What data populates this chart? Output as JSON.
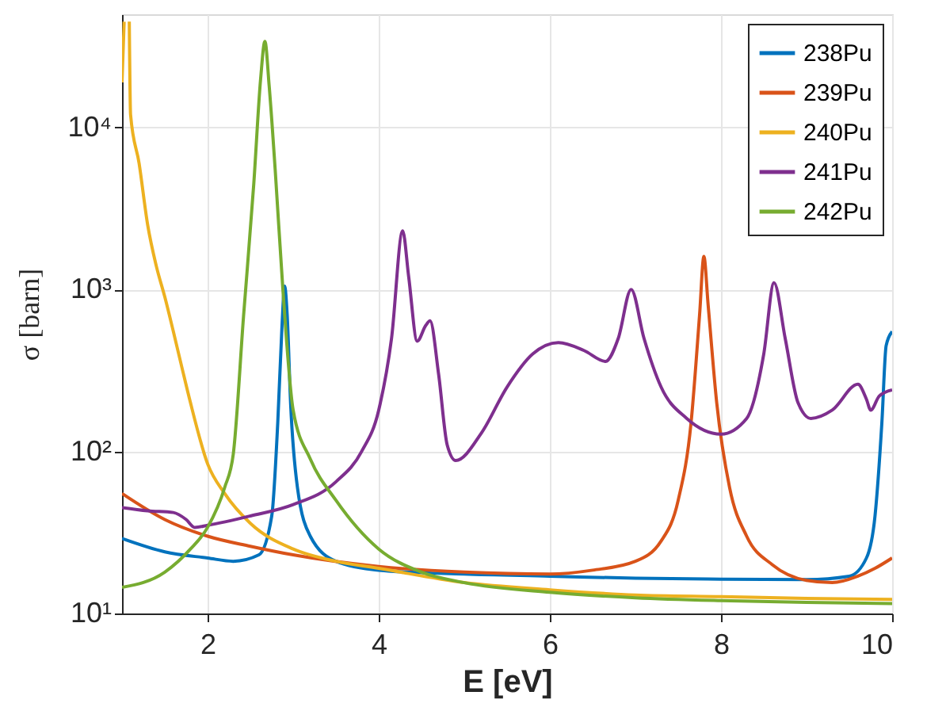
{
  "chart_data": {
    "type": "line",
    "xlabel": "E [eV]",
    "ylabel": "σ [barn]",
    "log": "y",
    "grid": true,
    "legend": "top right",
    "line_style": "solid",
    "marker": "none",
    "xlim": [
      1,
      10
    ],
    "xticks": [
      2,
      4,
      6,
      8,
      10
    ],
    "ylim": [
      10,
      50000
    ],
    "yticks": [
      {
        "value": 10,
        "label": "10¹"
      },
      {
        "value": 100,
        "label": "10²"
      },
      {
        "value": 1000,
        "label": "10³"
      },
      {
        "value": 10000,
        "label": "10⁴"
      }
    ],
    "series": [
      {
        "name": "238Pu",
        "color": "#0072bd",
        "x": [
          1,
          1.5,
          2,
          2.3,
          2.6,
          2.75,
          2.82,
          2.87,
          2.9,
          2.93,
          2.97,
          3.05,
          3.2,
          3.5,
          4,
          5,
          6,
          7,
          8,
          9,
          9.5,
          9.7,
          9.8,
          9.88,
          9.93,
          10
        ],
        "values": [
          29,
          24,
          22,
          21,
          23,
          40,
          150,
          600,
          1050,
          700,
          200,
          60,
          30,
          21,
          18.5,
          17.5,
          17,
          16.5,
          16.3,
          16.2,
          17,
          22,
          40,
          150,
          450,
          550
        ]
      },
      {
        "name": "239Pu",
        "color": "#d95319",
        "x": [
          1,
          1.5,
          2,
          2.5,
          3,
          4,
          5,
          6,
          6.5,
          7,
          7.3,
          7.5,
          7.65,
          7.75,
          7.8,
          7.85,
          7.95,
          8.1,
          8.3,
          8.6,
          9,
          9.3,
          9.6,
          9.8,
          10
        ],
        "values": [
          55,
          38,
          30,
          26,
          23,
          19.5,
          18,
          17.5,
          18.5,
          21,
          28,
          50,
          150,
          700,
          1600,
          800,
          200,
          60,
          30,
          20,
          16,
          15.5,
          17,
          19,
          22
        ]
      },
      {
        "name": "240Pu",
        "color": "#edb120",
        "x": [
          1,
          1.025,
          1.056,
          1.085,
          1.1,
          1.2,
          1.3,
          1.4,
          1.5,
          1.6,
          1.7,
          1.8,
          2,
          2.2,
          2.5,
          3,
          3.5,
          4,
          5,
          6,
          7,
          8,
          9,
          10
        ],
        "values": [
          19000,
          45000,
          null,
          45000,
          12000,
          6000,
          2500,
          1400,
          900,
          550,
          330,
          200,
          84,
          55,
          36,
          25,
          21,
          19,
          15.5,
          14,
          13,
          12.7,
          12.4,
          12.2
        ]
      },
      {
        "name": "241Pu",
        "color": "#7e2f8e",
        "x": [
          1,
          1.3,
          1.6,
          1.75,
          1.85,
          2,
          2.5,
          3,
          3.5,
          3.8,
          4,
          4.15,
          4.28,
          4.35,
          4.45,
          4.55,
          4.6,
          4.7,
          4.8,
          4.9,
          5.2,
          5.5,
          5.8,
          6.1,
          6.4,
          6.65,
          6.8,
          6.95,
          7.1,
          7.3,
          7.6,
          8,
          8.3,
          8.5,
          8.62,
          8.75,
          8.9,
          9.05,
          9.3,
          9.6,
          9.7,
          9.75,
          9.85,
          10
        ],
        "values": [
          45,
          43,
          42,
          38,
          34,
          35,
          40,
          47,
          65,
          100,
          180,
          500,
          2300,
          1200,
          480,
          600,
          640,
          300,
          110,
          88,
          130,
          250,
          400,
          470,
          420,
          360,
          500,
          1000,
          500,
          250,
          160,
          128,
          160,
          400,
          1100,
          500,
          200,
          160,
          180,
          260,
          210,
          180,
          220,
          240
        ]
      },
      {
        "name": "242Pu",
        "color": "#77ac30",
        "x": [
          1,
          1.5,
          1.8,
          2,
          2.2,
          2.3,
          2.42,
          2.54,
          2.62,
          2.67,
          2.72,
          2.79,
          2.88,
          3,
          3.2,
          3.5,
          4,
          4.5,
          5,
          6,
          7,
          8,
          9,
          10
        ],
        "values": [
          14.5,
          18,
          25,
          34,
          60,
          96,
          680,
          4500,
          20000,
          34000,
          18000,
          5500,
          1000,
          180,
          90,
          50,
          25,
          18,
          15.5,
          13.5,
          12.5,
          12,
          11.7,
          11.5
        ]
      }
    ]
  }
}
